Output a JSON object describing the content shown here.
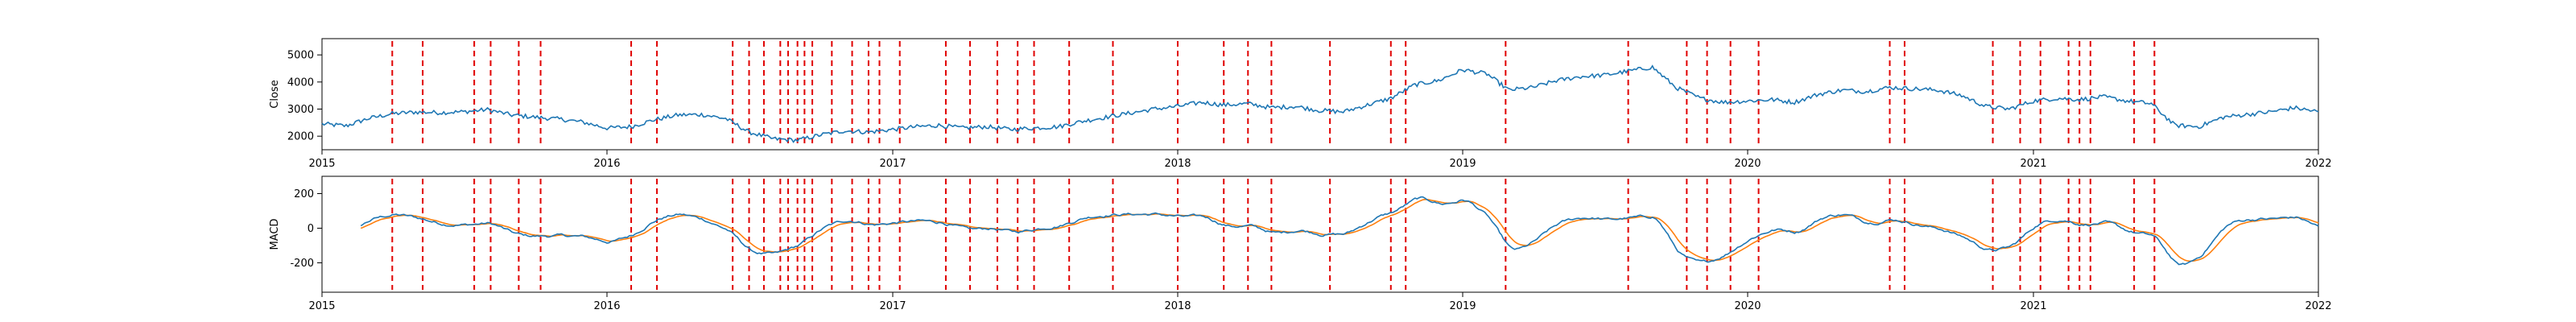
{
  "chart_data": [
    {
      "type": "line",
      "title": "",
      "xlabel": "",
      "ylabel": "Close",
      "x_ticks": [
        "2015",
        "2016",
        "2017",
        "2018",
        "2019",
        "2020",
        "2021",
        "2022"
      ],
      "y_ticks": [
        2000,
        3000,
        4000,
        5000
      ],
      "ylim": [
        1500,
        5600
      ],
      "xlim": [
        "2015-01-01",
        "2022-01-01"
      ],
      "grid": false,
      "series": [
        {
          "color": "#1f77b4",
          "points": [
            [
              "2015-01-01",
              2450
            ],
            [
              "2015-02-01",
              2380
            ],
            [
              "2015-03-01",
              2650
            ],
            [
              "2015-04-01",
              2830
            ],
            [
              "2015-05-01",
              2890
            ],
            [
              "2015-06-01",
              2870
            ],
            [
              "2015-07-01",
              2900
            ],
            [
              "2015-08-01",
              2980
            ],
            [
              "2015-09-01",
              2780
            ],
            [
              "2015-10-01",
              2700
            ],
            [
              "2015-11-01",
              2630
            ],
            [
              "2015-12-01",
              2520
            ],
            [
              "2016-01-01",
              2300
            ],
            [
              "2016-02-01",
              2350
            ],
            [
              "2016-03-01",
              2600
            ],
            [
              "2016-04-01",
              2780
            ],
            [
              "2016-05-01",
              2800
            ],
            [
              "2016-06-01",
              2650
            ],
            [
              "2016-07-01",
              2150
            ],
            [
              "2016-08-01",
              1900
            ],
            [
              "2016-09-01",
              1850
            ],
            [
              "2016-10-01",
              2050
            ],
            [
              "2016-11-01",
              2200
            ],
            [
              "2016-12-01",
              2150
            ],
            [
              "2017-01-01",
              2250
            ],
            [
              "2017-02-01",
              2350
            ],
            [
              "2017-03-01",
              2400
            ],
            [
              "2017-04-01",
              2300
            ],
            [
              "2017-05-01",
              2350
            ],
            [
              "2017-06-01",
              2250
            ],
            [
              "2017-07-01",
              2300
            ],
            [
              "2017-08-01",
              2350
            ],
            [
              "2017-09-01",
              2550
            ],
            [
              "2017-10-01",
              2700
            ],
            [
              "2017-11-01",
              2850
            ],
            [
              "2017-12-01",
              3000
            ],
            [
              "2018-01-01",
              3100
            ],
            [
              "2018-02-01",
              3250
            ],
            [
              "2018-03-01",
              3150
            ],
            [
              "2018-04-01",
              3200
            ],
            [
              "2018-05-01",
              3050
            ],
            [
              "2018-06-01",
              3100
            ],
            [
              "2018-07-01",
              2950
            ],
            [
              "2018-08-01",
              2900
            ],
            [
              "2018-09-01",
              3150
            ],
            [
              "2018-10-01",
              3400
            ],
            [
              "2018-11-01",
              3900
            ],
            [
              "2018-12-01",
              4050
            ],
            [
              "2019-01-01",
              4450
            ],
            [
              "2019-02-01",
              4300
            ],
            [
              "2019-03-01",
              3700
            ],
            [
              "2019-04-01",
              3800
            ],
            [
              "2019-05-01",
              4050
            ],
            [
              "2019-06-01",
              4200
            ],
            [
              "2019-07-01",
              4250
            ],
            [
              "2019-08-01",
              4400
            ],
            [
              "2019-09-01",
              4550
            ],
            [
              "2019-10-01",
              3800
            ],
            [
              "2019-11-01",
              3400
            ],
            [
              "2019-12-01",
              3250
            ],
            [
              "2020-01-01",
              3300
            ],
            [
              "2020-02-01",
              3350
            ],
            [
              "2020-03-01",
              3250
            ],
            [
              "2020-04-01",
              3550
            ],
            [
              "2020-05-01",
              3700
            ],
            [
              "2020-06-01",
              3650
            ],
            [
              "2020-07-01",
              3800
            ],
            [
              "2020-08-01",
              3750
            ],
            [
              "2020-09-01",
              3700
            ],
            [
              "2020-10-01",
              3500
            ],
            [
              "2020-11-01",
              3100
            ],
            [
              "2020-12-01",
              3000
            ],
            [
              "2021-01-01",
              3300
            ],
            [
              "2021-02-01",
              3400
            ],
            [
              "2021-03-01",
              3350
            ],
            [
              "2021-04-01",
              3450
            ],
            [
              "2021-05-01",
              3300
            ],
            [
              "2021-06-01",
              3200
            ],
            [
              "2021-07-01",
              2400
            ],
            [
              "2021-08-01",
              2350
            ],
            [
              "2021-09-01",
              2700
            ],
            [
              "2021-10-01",
              2800
            ],
            [
              "2021-11-01",
              2900
            ],
            [
              "2021-12-01",
              3050
            ],
            [
              "2022-01-01",
              2900
            ]
          ]
        }
      ],
      "vertical_lines_color": "#e00000"
    },
    {
      "type": "line",
      "title": "",
      "xlabel": "",
      "ylabel": "MACD",
      "x_ticks": [
        "2015",
        "2016",
        "2017",
        "2018",
        "2019",
        "2020",
        "2021",
        "2022"
      ],
      "y_ticks": [
        -200,
        0,
        200
      ],
      "ylim": [
        -370,
        300
      ],
      "xlim": [
        "2015-01-01",
        "2022-01-01"
      ],
      "grid": false,
      "series": [
        {
          "color": "#1f77b4",
          "points": []
        },
        {
          "color": "#ff7f0e",
          "points": []
        }
      ],
      "vertical_lines_color": "#e00000"
    }
  ],
  "vertical_event_dates": [
    "2015-04-01",
    "2015-05-10",
    "2015-07-15",
    "2015-08-05",
    "2015-09-10",
    "2015-10-08",
    "2016-02-01",
    "2016-03-05",
    "2016-06-10",
    "2016-07-01",
    "2016-07-20",
    "2016-08-10",
    "2016-08-20",
    "2016-09-01",
    "2016-09-10",
    "2016-09-20",
    "2016-10-15",
    "2016-11-10",
    "2016-12-01",
    "2016-12-15",
    "2017-01-10",
    "2017-03-10",
    "2017-04-10",
    "2017-05-15",
    "2017-06-10",
    "2017-07-01",
    "2017-08-15",
    "2017-10-10",
    "2018-01-01",
    "2018-03-01",
    "2018-04-01",
    "2018-05-01",
    "2018-07-15",
    "2018-10-01",
    "2018-10-20",
    "2019-02-25",
    "2019-08-01",
    "2019-10-15",
    "2019-11-10",
    "2019-12-10",
    "2020-01-15",
    "2020-07-01",
    "2020-07-20",
    "2020-11-10",
    "2020-12-15",
    "2021-01-10",
    "2021-02-15",
    "2021-03-01",
    "2021-03-15",
    "2021-05-10",
    "2021-06-05"
  ]
}
